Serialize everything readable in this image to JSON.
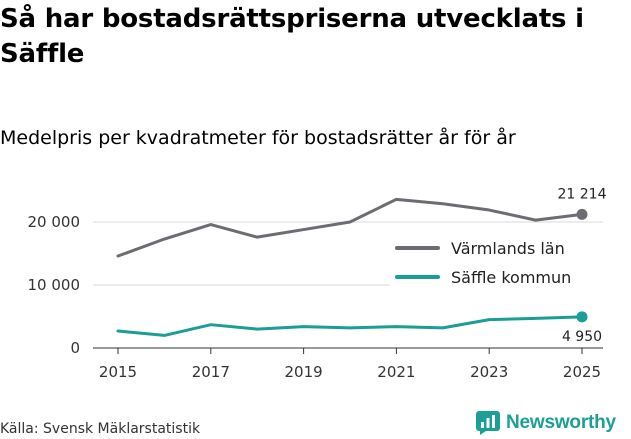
{
  "title": "Så har bostadsrättspriserna utvecklats i Säffle",
  "subtitle": "Medelpris per kvadratmeter för bostadsrätter år för år",
  "source": "Källa: Svensk Mäklarstatistik",
  "brand": {
    "name": "Newsworthy",
    "icon": "newsworthy-logo-icon",
    "color": "#1c9f96"
  },
  "chart_data": {
    "type": "line",
    "title": "Så har bostadsrättspriserna utvecklats i Säffle",
    "subtitle": "Medelpris per kvadratmeter för bostadsrätter år för år",
    "xlabel": "",
    "ylabel": "",
    "x": [
      2015,
      2016,
      2017,
      2018,
      2019,
      2020,
      2021,
      2022,
      2023,
      2024,
      2025
    ],
    "xticks": [
      2015,
      2017,
      2019,
      2021,
      2023,
      2025
    ],
    "xtick_labels": [
      "2015",
      "2017",
      "2019",
      "2021",
      "2023",
      "2025"
    ],
    "yticks": [
      0,
      10000,
      20000
    ],
    "ytick_labels": [
      "0",
      "10 000",
      "20 000"
    ],
    "ylim": [
      0,
      22000
    ],
    "grid": true,
    "legend_position": "right",
    "series": [
      {
        "name": "Värmlands län",
        "color": "#6d6c72",
        "values": [
          14600,
          17300,
          19600,
          17600,
          18800,
          20000,
          23600,
          22900,
          21900,
          20300,
          21214
        ],
        "end_label": "21 214"
      },
      {
        "name": "Säffle kommun",
        "color": "#1a9e96",
        "values": [
          2700,
          2000,
          3700,
          3000,
          3400,
          3200,
          3400,
          3200,
          4500,
          4700,
          4950
        ],
        "end_label": "4 950"
      }
    ]
  }
}
